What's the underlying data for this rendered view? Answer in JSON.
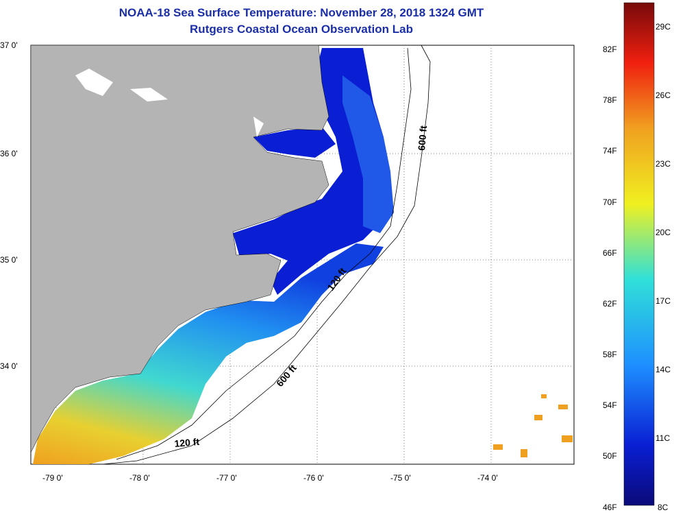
{
  "title_line1": "NOAA-18 Sea Surface Temperature:  November 28, 2018 1324 GMT",
  "title_line2": "Rutgers Coastal Ocean Observation Lab",
  "lat_labels": [
    "37 0'",
    "36 0'",
    "35 0'",
    "34 0'"
  ],
  "lon_labels": [
    "-79 0'",
    "-78 0'",
    "-77 0'",
    "-76 0'",
    "-75 0'",
    "-74 0'"
  ],
  "contour_labels": {
    "north_600": "600 ft",
    "central_120": "120 ft",
    "south_600": "600 ft",
    "south_120": "120 ft"
  },
  "colorbar": {
    "fahrenheit": [
      "82F",
      "78F",
      "74F",
      "70F",
      "66F",
      "62F",
      "58F",
      "54F",
      "50F",
      "46F"
    ],
    "celsius": [
      "29C",
      "26C",
      "23C",
      "20C",
      "17C",
      "14C",
      "11C",
      "8C"
    ],
    "min_f": 46,
    "max_f": 86,
    "min_c": 8,
    "max_c": 30
  },
  "colors": {
    "land": "#b4b4b4",
    "title": "#1a2ea8",
    "cold": "#0a1fd4",
    "warm": "#f0a020"
  }
}
